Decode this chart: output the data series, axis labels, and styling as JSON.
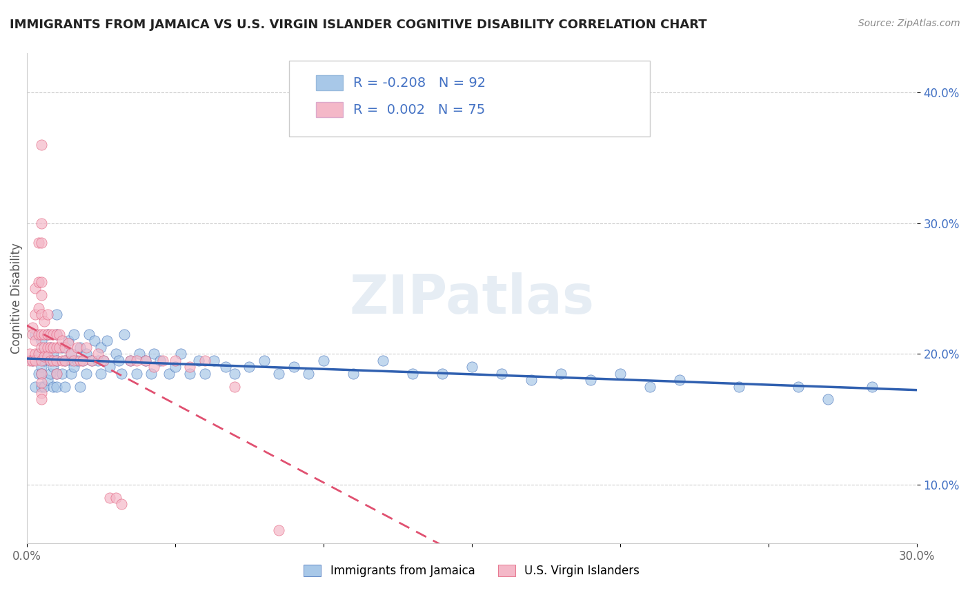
{
  "title": "IMMIGRANTS FROM JAMAICA VS U.S. VIRGIN ISLANDER COGNITIVE DISABILITY CORRELATION CHART",
  "source": "Source: ZipAtlas.com",
  "ylabel": "Cognitive Disability",
  "xlim": [
    0.0,
    0.3
  ],
  "ylim": [
    0.055,
    0.43
  ],
  "yticks": [
    0.1,
    0.2,
    0.3,
    0.4
  ],
  "ytick_labels": [
    "10.0%",
    "20.0%",
    "30.0%",
    "40.0%"
  ],
  "xticks": [
    0.0,
    0.05,
    0.1,
    0.15,
    0.2,
    0.25,
    0.3
  ],
  "xtick_labels": [
    "0.0%",
    "",
    "",
    "",
    "",
    "",
    "30.0%"
  ],
  "blue_R": -0.208,
  "blue_N": 92,
  "pink_R": 0.002,
  "pink_N": 75,
  "blue_color": "#a8c8e8",
  "pink_color": "#f4b8c8",
  "blue_line_color": "#3060b0",
  "pink_line_color": "#e05070",
  "watermark": "ZIPatlas",
  "legend_label_blue": "Immigrants from Jamaica",
  "legend_label_pink": "U.S. Virgin Islanders",
  "blue_scatter_x": [
    0.002,
    0.003,
    0.003,
    0.004,
    0.004,
    0.005,
    0.005,
    0.005,
    0.005,
    0.005,
    0.006,
    0.006,
    0.007,
    0.007,
    0.008,
    0.008,
    0.008,
    0.009,
    0.009,
    0.009,
    0.01,
    0.01,
    0.01,
    0.01,
    0.01,
    0.012,
    0.012,
    0.013,
    0.013,
    0.014,
    0.015,
    0.015,
    0.015,
    0.016,
    0.016,
    0.017,
    0.018,
    0.018,
    0.019,
    0.02,
    0.02,
    0.021,
    0.022,
    0.023,
    0.024,
    0.025,
    0.025,
    0.026,
    0.027,
    0.028,
    0.03,
    0.031,
    0.032,
    0.033,
    0.035,
    0.037,
    0.038,
    0.04,
    0.042,
    0.043,
    0.045,
    0.048,
    0.05,
    0.052,
    0.055,
    0.058,
    0.06,
    0.063,
    0.067,
    0.07,
    0.075,
    0.08,
    0.085,
    0.09,
    0.095,
    0.1,
    0.11,
    0.12,
    0.13,
    0.14,
    0.15,
    0.16,
    0.17,
    0.18,
    0.19,
    0.2,
    0.21,
    0.22,
    0.24,
    0.26,
    0.27,
    0.285
  ],
  "blue_scatter_y": [
    0.195,
    0.175,
    0.215,
    0.185,
    0.2,
    0.19,
    0.185,
    0.175,
    0.2,
    0.21,
    0.175,
    0.195,
    0.18,
    0.215,
    0.185,
    0.195,
    0.205,
    0.175,
    0.19,
    0.2,
    0.185,
    0.195,
    0.175,
    0.215,
    0.23,
    0.185,
    0.205,
    0.195,
    0.175,
    0.21,
    0.195,
    0.185,
    0.2,
    0.215,
    0.19,
    0.195,
    0.205,
    0.175,
    0.195,
    0.2,
    0.185,
    0.215,
    0.195,
    0.21,
    0.195,
    0.185,
    0.205,
    0.195,
    0.21,
    0.19,
    0.2,
    0.195,
    0.185,
    0.215,
    0.195,
    0.185,
    0.2,
    0.195,
    0.185,
    0.2,
    0.195,
    0.185,
    0.19,
    0.2,
    0.185,
    0.195,
    0.185,
    0.195,
    0.19,
    0.185,
    0.19,
    0.195,
    0.185,
    0.19,
    0.185,
    0.195,
    0.185,
    0.195,
    0.185,
    0.185,
    0.19,
    0.185,
    0.18,
    0.185,
    0.18,
    0.185,
    0.175,
    0.18,
    0.175,
    0.175,
    0.165,
    0.175
  ],
  "pink_scatter_x": [
    0.001,
    0.001,
    0.002,
    0.002,
    0.002,
    0.003,
    0.003,
    0.003,
    0.003,
    0.003,
    0.004,
    0.004,
    0.004,
    0.004,
    0.004,
    0.005,
    0.005,
    0.005,
    0.005,
    0.005,
    0.005,
    0.005,
    0.005,
    0.005,
    0.005,
    0.005,
    0.005,
    0.005,
    0.006,
    0.006,
    0.006,
    0.006,
    0.007,
    0.007,
    0.007,
    0.007,
    0.008,
    0.008,
    0.008,
    0.009,
    0.009,
    0.009,
    0.01,
    0.01,
    0.01,
    0.01,
    0.011,
    0.011,
    0.012,
    0.012,
    0.013,
    0.013,
    0.014,
    0.015,
    0.016,
    0.017,
    0.018,
    0.019,
    0.02,
    0.022,
    0.024,
    0.026,
    0.028,
    0.03,
    0.032,
    0.035,
    0.037,
    0.04,
    0.043,
    0.046,
    0.05,
    0.055,
    0.06,
    0.07,
    0.085
  ],
  "pink_scatter_y": [
    0.2,
    0.195,
    0.22,
    0.195,
    0.215,
    0.25,
    0.23,
    0.21,
    0.2,
    0.195,
    0.285,
    0.255,
    0.235,
    0.215,
    0.2,
    0.36,
    0.3,
    0.285,
    0.255,
    0.245,
    0.23,
    0.215,
    0.205,
    0.195,
    0.185,
    0.178,
    0.17,
    0.165,
    0.225,
    0.215,
    0.205,
    0.198,
    0.23,
    0.215,
    0.205,
    0.198,
    0.215,
    0.205,
    0.195,
    0.215,
    0.205,
    0.195,
    0.215,
    0.205,
    0.195,
    0.185,
    0.215,
    0.205,
    0.21,
    0.195,
    0.205,
    0.195,
    0.208,
    0.2,
    0.195,
    0.205,
    0.195,
    0.195,
    0.205,
    0.195,
    0.2,
    0.195,
    0.09,
    0.09,
    0.085,
    0.195,
    0.195,
    0.195,
    0.19,
    0.195,
    0.195,
    0.19,
    0.195,
    0.175,
    0.065
  ]
}
